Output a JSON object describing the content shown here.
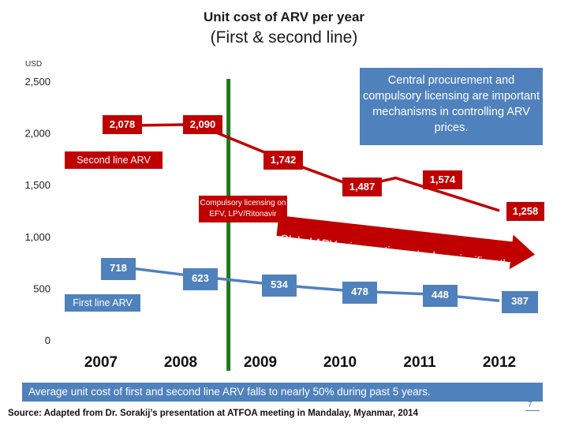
{
  "chart_data": {
    "type": "line",
    "title": "Unit cost of ARV per year",
    "subtitle": "(First & second line)",
    "ylabel": "USD",
    "ylim": [
      0,
      2500
    ],
    "yticks": [
      0,
      500,
      1000,
      1500,
      2000,
      2500
    ],
    "ytick_labels": [
      "0",
      "500",
      "1,000",
      "1,500",
      "2,000",
      "2,500"
    ],
    "x": [
      2007,
      2007.5,
      2008,
      2008.5,
      2009,
      2009.5,
      2010,
      2010.5,
      2011,
      2011.5,
      2012
    ],
    "xticks": [
      2007,
      2008,
      2009,
      2010,
      2011,
      2012
    ],
    "xtick_labels": [
      "2007",
      "2008",
      "2009",
      "2010",
      "2011",
      "2012"
    ],
    "series": [
      {
        "name": "Second line ARV",
        "color": "#c00000",
        "points": [
          [
            2007.2,
            2078
          ],
          [
            2008.2,
            2090
          ],
          [
            2009.3,
            1742
          ],
          [
            2010.2,
            1487
          ],
          [
            2010.7,
            1574
          ],
          [
            2012,
            1258
          ]
        ],
        "labels": [
          "2,078",
          "2,090",
          "1,742",
          "1,487",
          "1,574",
          "1,258"
        ]
      },
      {
        "name": "First line ARV",
        "color": "#4f81bd",
        "points": [
          [
            2007.2,
            718
          ],
          [
            2008.2,
            623
          ],
          [
            2009.3,
            534
          ],
          [
            2010.2,
            478
          ],
          [
            2011.2,
            448
          ],
          [
            2012,
            387
          ]
        ],
        "labels": [
          "718",
          "623",
          "534",
          "478",
          "448",
          "387"
        ]
      }
    ],
    "annotations": {
      "callout": "Central procurement and compulsory licensing are important mechanisms in controlling ARV prices.",
      "compulsory": "Compulsory licensing on EFV, LPV/Ritonavir",
      "arrow_text": "Global ARV price continues to drop significantly",
      "divider_year": 2008.6
    }
  },
  "footer": {
    "summary": "Average unit cost of first and second line ARV falls to nearly 50% during past 5 years.",
    "source": "Source: Adapted from Dr. Sorakij’s presentation at ATFOA meeting in Mandalay, Myanmar, 2014",
    "page": "7"
  },
  "colors": {
    "red": "#c00000",
    "blue": "#4f81bd",
    "green": "#1e7b1e"
  }
}
